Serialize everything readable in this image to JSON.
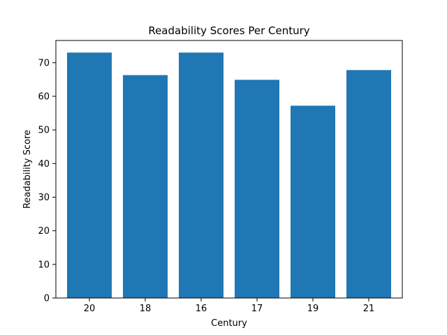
{
  "chart_data": {
    "type": "bar",
    "title": "Readability Scores Per Century",
    "xlabel": "Century",
    "ylabel": "Readability Score",
    "categories": [
      "20",
      "18",
      "16",
      "17",
      "19",
      "21"
    ],
    "values": [
      73.0,
      66.3,
      73.0,
      64.9,
      57.2,
      67.8
    ],
    "ylim": [
      0,
      76.6
    ],
    "yticks": [
      0,
      10,
      20,
      30,
      40,
      50,
      60,
      70
    ],
    "bar_color": "#1f77b4",
    "grid": false,
    "legend": "none"
  }
}
